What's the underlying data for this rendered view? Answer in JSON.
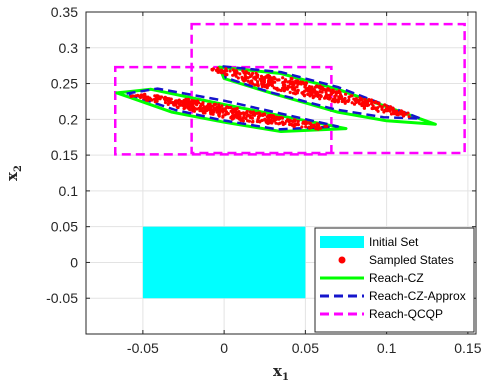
{
  "chart_data": {
    "type": "scatter",
    "title": "",
    "xlabel": "x",
    "xlabel_sub": "1",
    "ylabel": "x",
    "ylabel_sub": "2",
    "xlim": [
      -0.085,
      0.155
    ],
    "ylim": [
      -0.1,
      0.35
    ],
    "xticks": [
      -0.05,
      0,
      0.05,
      0.1,
      0.15
    ],
    "xtick_labels": [
      "-0.05",
      "0",
      "0.05",
      "0.1",
      "0.15"
    ],
    "yticks": [
      -0.05,
      0,
      0.05,
      0.1,
      0.15,
      0.2,
      0.25,
      0.3,
      0.35
    ],
    "ytick_labels": [
      "-0.05",
      "0",
      "0.05",
      "0.1",
      "0.15",
      "0.2",
      "0.25",
      "0.3",
      "0.35"
    ],
    "grid": true,
    "legend_position": "bottom-right",
    "series": [
      {
        "name": "Initial Set",
        "kind": "filled-rect",
        "color": "#00ffff",
        "rects": [
          {
            "x": [
              -0.05,
              0.05
            ],
            "y": [
              -0.05,
              0.05
            ]
          }
        ]
      },
      {
        "name": "Sampled States",
        "kind": "points",
        "color": "#ff0000",
        "clusters": [
          {
            "polygon": [
              [
                -0.048,
                0.235
              ],
              [
                -0.015,
                0.226
              ],
              [
                0.03,
                0.205
              ],
              [
                0.066,
                0.19
              ],
              [
                0.058,
                0.186
              ],
              [
                0.01,
                0.198
              ],
              [
                -0.02,
                0.212
              ],
              [
                -0.06,
                0.233
              ]
            ],
            "count": 420
          },
          {
            "polygon": [
              [
                -0.002,
                0.272
              ],
              [
                0.04,
                0.258
              ],
              [
                0.09,
                0.228
              ],
              [
                0.118,
                0.205
              ],
              [
                0.112,
                0.203
              ],
              [
                0.07,
                0.223
              ],
              [
                0.02,
                0.247
              ],
              [
                -0.01,
                0.27
              ]
            ],
            "count": 420
          }
        ]
      },
      {
        "name": "Reach-CZ",
        "kind": "polygons",
        "color": "#00ff00",
        "polygons": [
          [
            [
              -0.066,
              0.237
            ],
            [
              -0.045,
              0.242
            ],
            [
              -0.005,
              0.223
            ],
            [
              0.035,
              0.205
            ],
            [
              0.075,
              0.187
            ],
            [
              0.035,
              0.183
            ],
            [
              0.0,
              0.196
            ],
            [
              -0.032,
              0.21
            ]
          ],
          [
            [
              -0.003,
              0.273
            ],
            [
              0.035,
              0.264
            ],
            [
              0.07,
              0.242
            ],
            [
              0.13,
              0.193
            ],
            [
              0.1,
              0.198
            ],
            [
              0.07,
              0.21
            ],
            [
              0.03,
              0.236
            ],
            [
              0.0,
              0.257
            ]
          ]
        ]
      },
      {
        "name": "Reach-CZ-Approx",
        "kind": "polygons",
        "color": "#1515cc",
        "polygons": [
          [
            [
              -0.06,
              0.236
            ],
            [
              -0.041,
              0.243
            ],
            [
              0.0,
              0.226
            ],
            [
              0.035,
              0.208
            ],
            [
              0.07,
              0.19
            ],
            [
              0.033,
              0.186
            ],
            [
              -0.002,
              0.199
            ],
            [
              -0.03,
              0.213
            ]
          ],
          [
            [
              -0.001,
              0.274
            ],
            [
              0.035,
              0.266
            ],
            [
              0.07,
              0.245
            ],
            [
              0.121,
              0.201
            ],
            [
              0.098,
              0.203
            ],
            [
              0.068,
              0.214
            ],
            [
              0.028,
              0.238
            ],
            [
              0.001,
              0.258
            ]
          ]
        ]
      },
      {
        "name": "Reach-QCQP",
        "kind": "rects",
        "color": "#ff00ff",
        "rects": [
          {
            "x": [
              -0.067,
              0.066
            ],
            "y": [
              0.151,
              0.273
            ]
          },
          {
            "x": [
              -0.02,
              0.148
            ],
            "y": [
              0.153,
              0.333
            ]
          }
        ]
      }
    ]
  }
}
